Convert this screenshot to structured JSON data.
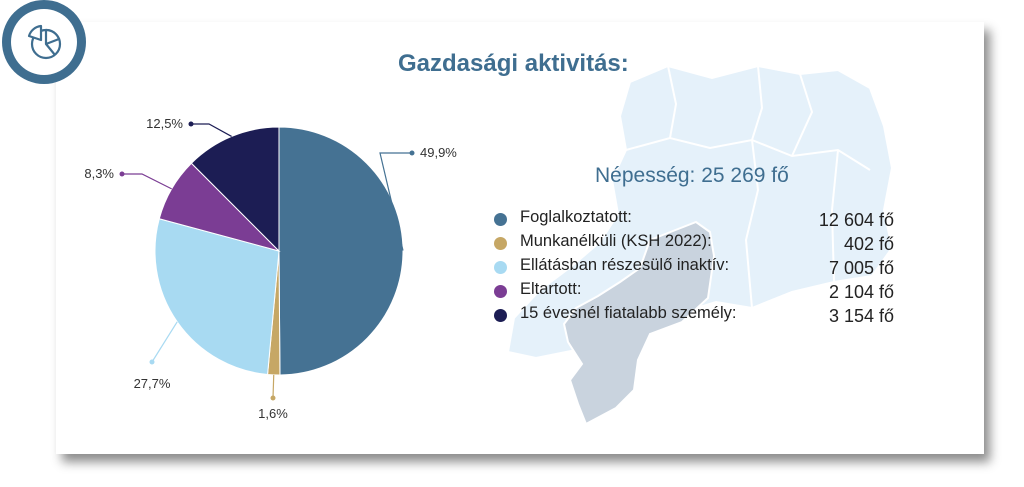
{
  "title": "Gazdasági aktivitás:",
  "population": "Népesség: 25 269 fő",
  "icons": {
    "badge": "pie-chart-icon"
  },
  "chart_data": {
    "type": "pie",
    "categories": [
      "Foglalkoztatott:",
      "Munkanélküli (KSH 2022):",
      "Ellátásban részesülő inaktív:",
      "Eltartott:",
      "15 évesnél fiatalabb személy:"
    ],
    "values": [
      12604,
      402,
      7005,
      2104,
      3154
    ],
    "value_labels": [
      "12 604 fő",
      "402 fő",
      "7 005 fő",
      "2 104 fő",
      "3 154 fő"
    ],
    "percent_labels": [
      "49,9%",
      "1,6%",
      "27,7%",
      "8,3%",
      "12,5%"
    ],
    "colors": [
      "#457293",
      "#c6a765",
      "#a8daf2",
      "#7b3d94",
      "#1c1d54"
    ],
    "legend_position": "right"
  }
}
